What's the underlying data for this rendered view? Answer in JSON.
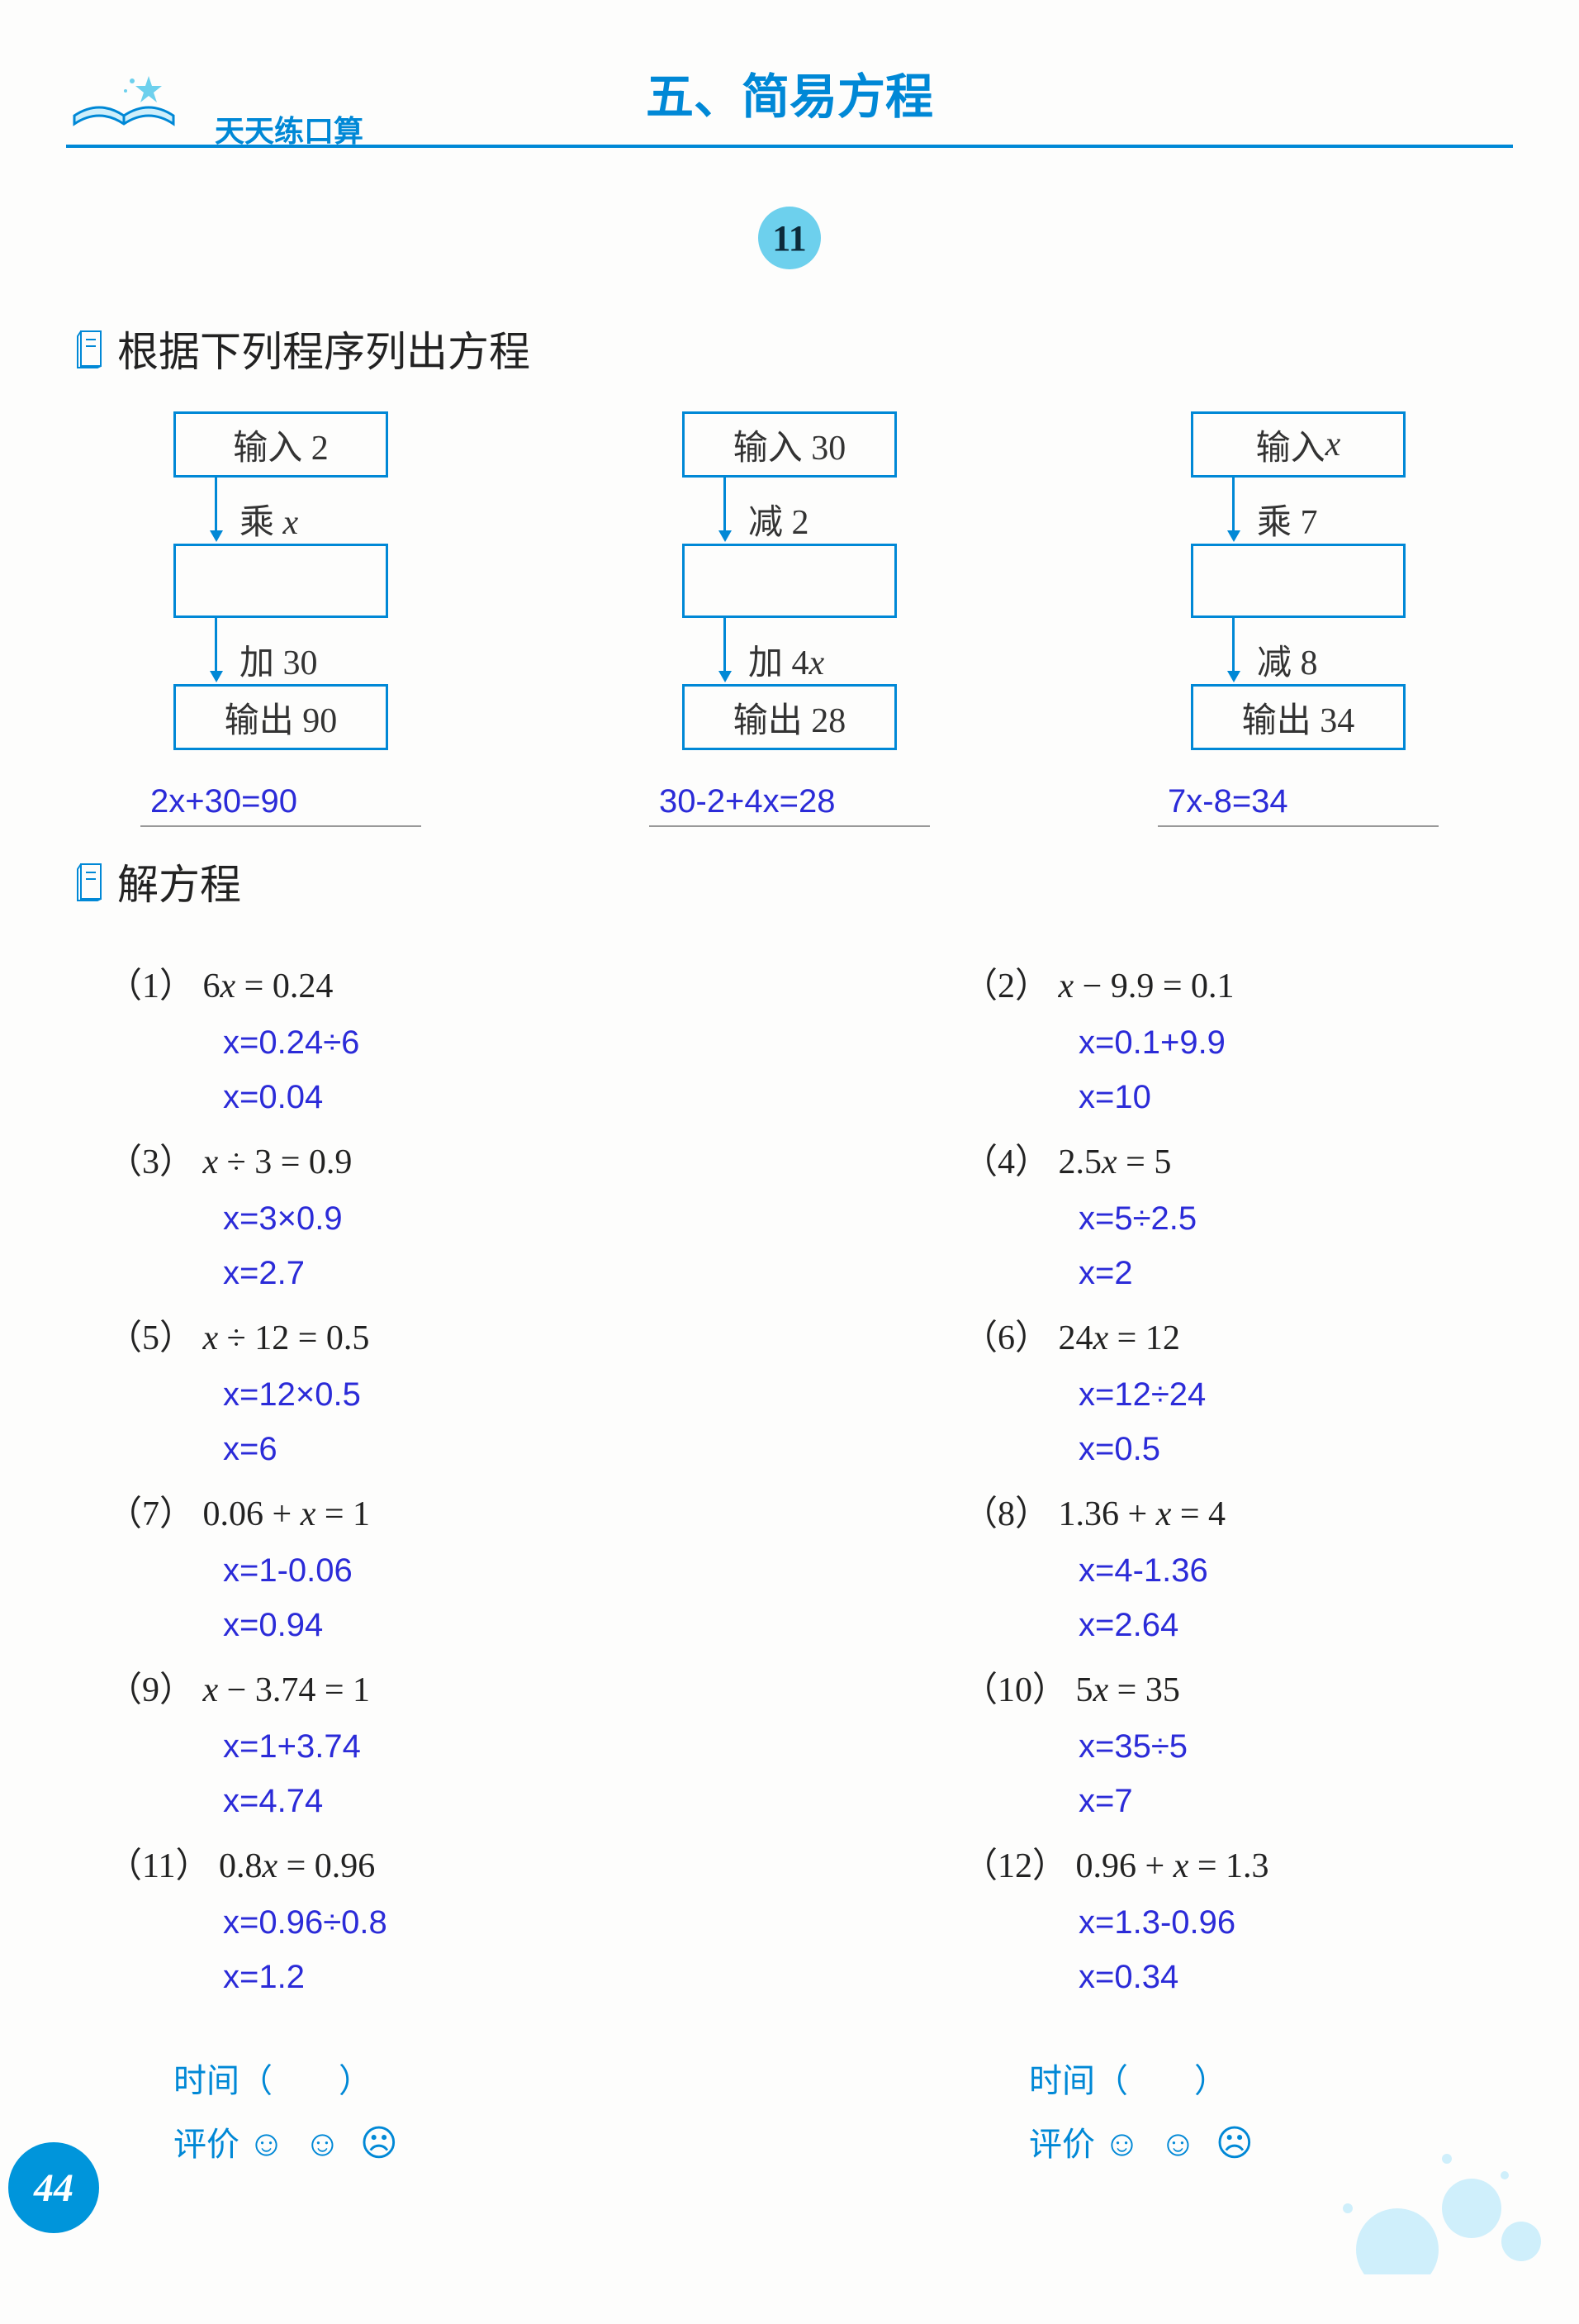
{
  "header": {
    "subtitle": "天天练口算",
    "chapter": "五、简易方程",
    "lesson": "11"
  },
  "section1": {
    "title": "根据下列程序列出方程",
    "flows": [
      {
        "in": "输入 2",
        "op1": "乘 x",
        "op2": "加 30",
        "out": "输出 90",
        "answer": "2x+30=90"
      },
      {
        "in": "输入 30",
        "op1": "减 2",
        "op2": "加 4x",
        "out": "输出 28",
        "answer": "30-2+4x=28"
      },
      {
        "in": "输入 x",
        "op1": "乘 7",
        "op2": "减 8",
        "out": "输出 34",
        "answer": "7x-8=34"
      }
    ]
  },
  "section2": {
    "title": "解方程",
    "problems": [
      {
        "n": "（1）",
        "q": "6x = 0.24",
        "s1": "x=0.24÷6",
        "s2": "x=0.04"
      },
      {
        "n": "（2）",
        "q": "x − 9.9 = 0.1",
        "s1": "x=0.1+9.9",
        "s2": "x=10"
      },
      {
        "n": "（3）",
        "q": "x ÷ 3 = 0.9",
        "s1": "x=3×0.9",
        "s2": "x=2.7"
      },
      {
        "n": "（4）",
        "q": "2.5x = 5",
        "s1": "x=5÷2.5",
        "s2": "x=2"
      },
      {
        "n": "（5）",
        "q": "x ÷ 12 = 0.5",
        "s1": "x=12×0.5",
        "s2": "x=6"
      },
      {
        "n": "（6）",
        "q": "24x = 12",
        "s1": "x=12÷24",
        "s2": "x=0.5"
      },
      {
        "n": "（7）",
        "q": "0.06 + x = 1",
        "s1": "x=1-0.06",
        "s2": "x=0.94"
      },
      {
        "n": "（8）",
        "q": "1.36 + x = 4",
        "s1": "x=4-1.36",
        "s2": "x=2.64"
      },
      {
        "n": "（9）",
        "q": "x − 3.74 = 1",
        "s1": "x=1+3.74",
        "s2": "x=4.74"
      },
      {
        "n": "（10）",
        "q": "5x = 35",
        "s1": "x=35÷5",
        "s2": "x=7"
      },
      {
        "n": "（11）",
        "q": "0.8x = 0.96",
        "s1": "x=0.96÷0.8",
        "s2": "x=1.2"
      },
      {
        "n": "（12）",
        "q": "0.96 + x = 1.3",
        "s1": "x=1.3-0.96",
        "s2": "x=0.34"
      }
    ]
  },
  "footer": {
    "time_label": "时间（　　）",
    "rating_label": "评价",
    "smileys": "☺ ☺ ☹",
    "page": "44"
  },
  "colors": {
    "brand": "#0088d6",
    "answer": "#2b2bd8",
    "badge": "#6dd0ed",
    "pagenum": "#0095db"
  }
}
